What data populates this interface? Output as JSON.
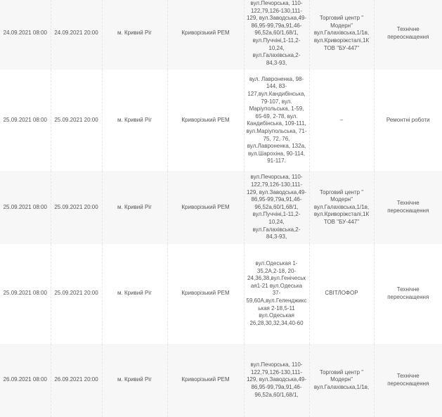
{
  "rows": [
    {
      "start": "24.09.2021 08:00",
      "end": "24.09.2021 20:00",
      "city": "м. Кривий Ріг",
      "rem": "Криворізький РЕМ",
      "streets": "вул.Печорська, 110-122,79,126-130,111-129, вул.Заводська,49-86,95-99,79а,91,46-96,52а,60/1,68/1, вул.Пуччіні,1-11,2-10,24, вул.Галахівська,2-84,3-93,",
      "objects": "Торговий центр \" Модерн\" вул.Галахівська,1/1в, вул.Криворіжсталі,1К ТОВ \"БУ-447\"",
      "type": "Технічне переоснащення"
    },
    {
      "start": "25.09.2021 08:00",
      "end": "25.09.2021 20:00",
      "city": "м. Кривий Ріг",
      "rem": "Криворізький РЕМ",
      "streets": "вул. Лавроненка, 98-144, 83-127,вул.Кандибінська, 79-107, вул. Маріупольська, 1-59, 65-69, 2-78, вул. Кандибінська, 109-111, вул.Маріупольська, 71-75, 72, 76, вул.Лавроненка, 132а, вул.Шарохіна, 90-114, 91-117.",
      "objects": "–",
      "type": "Ремонтні роботи"
    },
    {
      "start": "25.09.2021 08:00",
      "end": "25.09.2021 20:00",
      "city": "м. Кривий Ріг",
      "rem": "Криворізький РЕМ",
      "streets": "вул.Печорська, 110-122,79,126-130,111-129, вул.Заводська,49-86,95-99,79а,91,46-96,52а,60/1,68/1, вул.Пуччіні,1-11,2-10,24, вул.Галахівська,2-84,3-93,",
      "objects": "Торговий центр \" Модерн\" вул.Галахівська,1/1в, вул.Криворіжсталі,1К ТОВ \"БУ-447\"",
      "type": "Технічне переоснащення"
    },
    {
      "start": "25.09.2021 08:00",
      "end": "25.09.2021 20:00",
      "city": "м. Кривий Ріг",
      "rem": "Криворізький РЕМ",
      "streets": "вул.Одеськая 1-35,2А,2-18, 20-24,36,38,вул.Генічеськая1-21 вул.Одеська 37-59,60А,вул.Геленджикськая 2-18,5-11 вул.Одеськая 26,28,30,32,34,40-60",
      "objects": "СВІТЛОФОР",
      "type": "Технічне переоснащення"
    },
    {
      "start": "26.09.2021 08:00",
      "end": "26.09.2021 20:00",
      "city": "м. Кривий Ріг",
      "rem": "Криворізький РЕМ",
      "streets": "вул.Печорська, 110-122,79,126-130,111-129, вул.Заводська,49-86,95-99,79а,91,46-96,52а,60/1,68/1,",
      "objects": "Торговий центр \" Модерн\" вул.Галахівська,1/1в,",
      "type": "Технічне переоснащення"
    }
  ]
}
